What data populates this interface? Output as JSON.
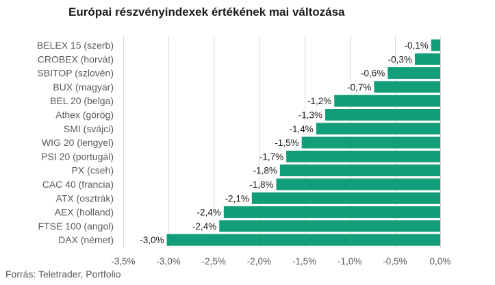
{
  "chart_data": {
    "type": "bar",
    "orientation": "horizontal",
    "title": "Európai részvényindexek értékének mai változása",
    "source": "Forrás: Teletrader, Portfolio",
    "categories": [
      "BELEX 15 (szerb)",
      "CROBEX (horvát)",
      "SBITOP (szlovén)",
      "BUX (magyar)",
      "BEL 20 (belga)",
      "Athex (görög)",
      "SMI (svájci)",
      "WIG 20 (lengyel)",
      "PSI 20 (portugál)",
      "PX (cseh)",
      "CAC 40 (francia)",
      "ATX (osztrák)",
      "AEX (holland)",
      "FTSE 100 (angol)",
      "DAX (német)"
    ],
    "values": [
      -0.1,
      -0.28,
      -0.58,
      -0.73,
      -1.17,
      -1.27,
      -1.37,
      -1.53,
      -1.7,
      -1.77,
      -1.81,
      -2.08,
      -2.39,
      -2.44,
      -3.02
    ],
    "value_labels": [
      "-0,1%",
      "-0,3%",
      "-0,6%",
      "-0,7%",
      "-1,2%",
      "-1,3%",
      "-1,4%",
      "-1,5%",
      "-1,7%",
      "-1,8%",
      "-1,8%",
      "-2,1%",
      "-2,4%",
      "-2,4%",
      "-3,0%"
    ],
    "xlim": [
      -3.5,
      0
    ],
    "xticks": [
      -3.5,
      -3.0,
      -2.5,
      -2.0,
      -1.5,
      -1.0,
      -0.5,
      0.0
    ],
    "xtick_labels": [
      "-3,5%",
      "-3,0%",
      "-2,5%",
      "-2,0%",
      "-1,5%",
      "-1,0%",
      "-0,5%",
      "0,0%"
    ],
    "grid": true,
    "colors": {
      "bar": "#119e78",
      "grid": "#d9d9d9"
    }
  }
}
